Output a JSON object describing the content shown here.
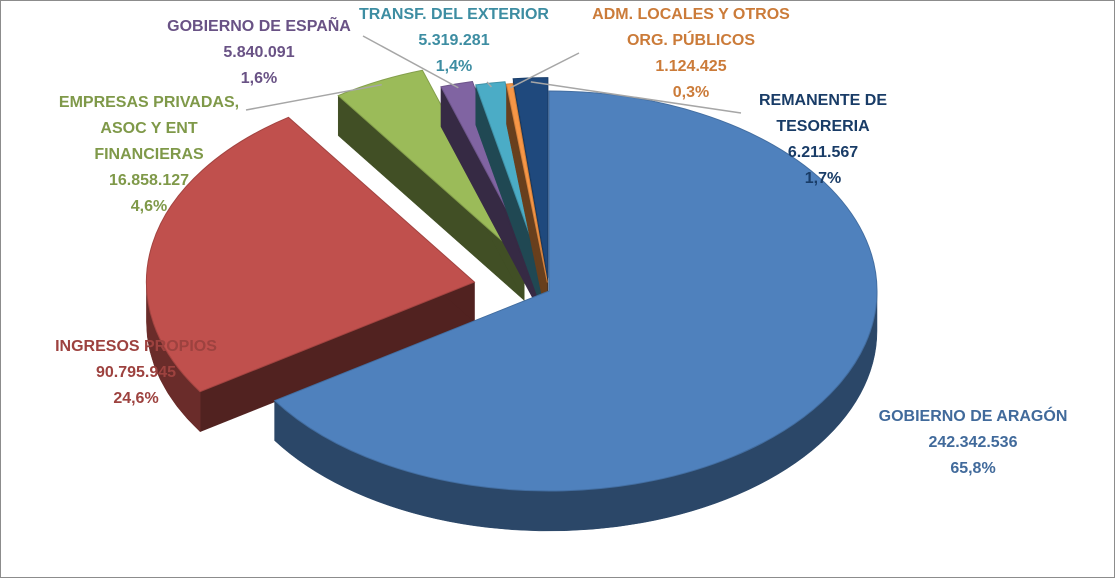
{
  "chart_data": {
    "type": "pie",
    "title": "",
    "style": "3d-exploded",
    "slices": [
      {
        "label_lines": [
          "GOBIERNO DE ARAGÓN"
        ],
        "value": 242342536,
        "value_text": "242.342.536",
        "pct_text": "65,8%",
        "color": "#4f81bd"
      },
      {
        "label_lines": [
          "INGRESOS PROPIOS"
        ],
        "value": 90795945,
        "value_text": "90.795.945",
        "pct_text": "24,6%",
        "color": "#c0504d"
      },
      {
        "label_lines": [
          "EMPRESAS PRIVADAS,",
          "ASOC Y ENT",
          "FINANCIERAS"
        ],
        "value": 16858127,
        "value_text": "16.858.127",
        "pct_text": "4,6%",
        "color": "#9bbb59"
      },
      {
        "label_lines": [
          "GOBIERNO DE ESPAÑA"
        ],
        "value": 5840091,
        "value_text": "5.840.091",
        "pct_text": "1,6%",
        "color": "#8064a2"
      },
      {
        "label_lines": [
          "TRANSF. DEL EXTERIOR"
        ],
        "value": 5319281,
        "value_text": "5.319.281",
        "pct_text": "1,4%",
        "color": "#4bacc6"
      },
      {
        "label_lines": [
          "ADM. LOCALES Y OTROS",
          "ORG. PÚBLICOS"
        ],
        "value": 1124425,
        "value_text": "1.124.425",
        "pct_text": "0,3%",
        "color": "#f79646"
      },
      {
        "label_lines": [
          "REMANENTE DE",
          "TESORERIA"
        ],
        "value": 6211567,
        "value_text": "6.211.567",
        "pct_text": "1,7%",
        "color": "#1f497d"
      }
    ]
  }
}
